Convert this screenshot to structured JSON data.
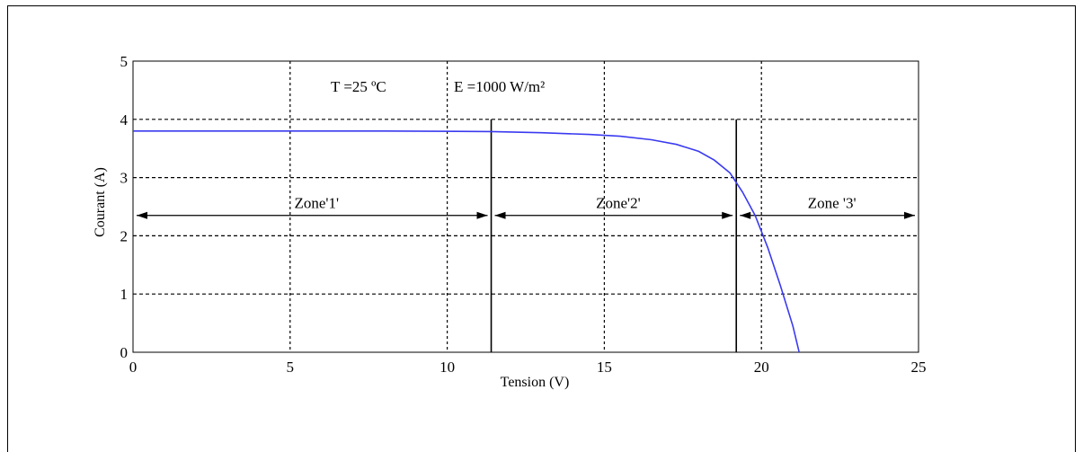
{
  "chart_data": {
    "type": "line",
    "xlabel": "Tension (V)",
    "ylabel": "Courant (A)",
    "xlim": [
      0,
      25
    ],
    "ylim": [
      0,
      5
    ],
    "x_ticks": [
      "0",
      "5",
      "10",
      "15",
      "20",
      "25"
    ],
    "y_ticks": [
      "0",
      "1",
      "2",
      "3",
      "4",
      "5"
    ],
    "grid": true,
    "annotations": {
      "temperature": "T =25 ºC",
      "irradiance": "E =1000 W/m²"
    },
    "zones": [
      {
        "label": "Zone'1'",
        "from": 0,
        "to": 11.4
      },
      {
        "label": "Zone'2'",
        "from": 11.4,
        "to": 19.2
      },
      {
        "label": "Zone '3'",
        "from": 19.2,
        "to": 25
      }
    ],
    "zone_boundaries": [
      11.4,
      19.2
    ],
    "series": [
      {
        "color": "#3a3af0",
        "x": [
          0,
          4,
          8,
          11.4,
          13,
          14.5,
          15.5,
          16.5,
          17.3,
          18,
          18.5,
          19,
          19.4,
          19.8,
          20.2,
          20.6,
          21.0,
          21.2
        ],
        "y": [
          3.8,
          3.8,
          3.8,
          3.79,
          3.77,
          3.74,
          3.71,
          3.65,
          3.57,
          3.45,
          3.3,
          3.08,
          2.75,
          2.35,
          1.8,
          1.15,
          0.45,
          0.0
        ]
      }
    ]
  }
}
